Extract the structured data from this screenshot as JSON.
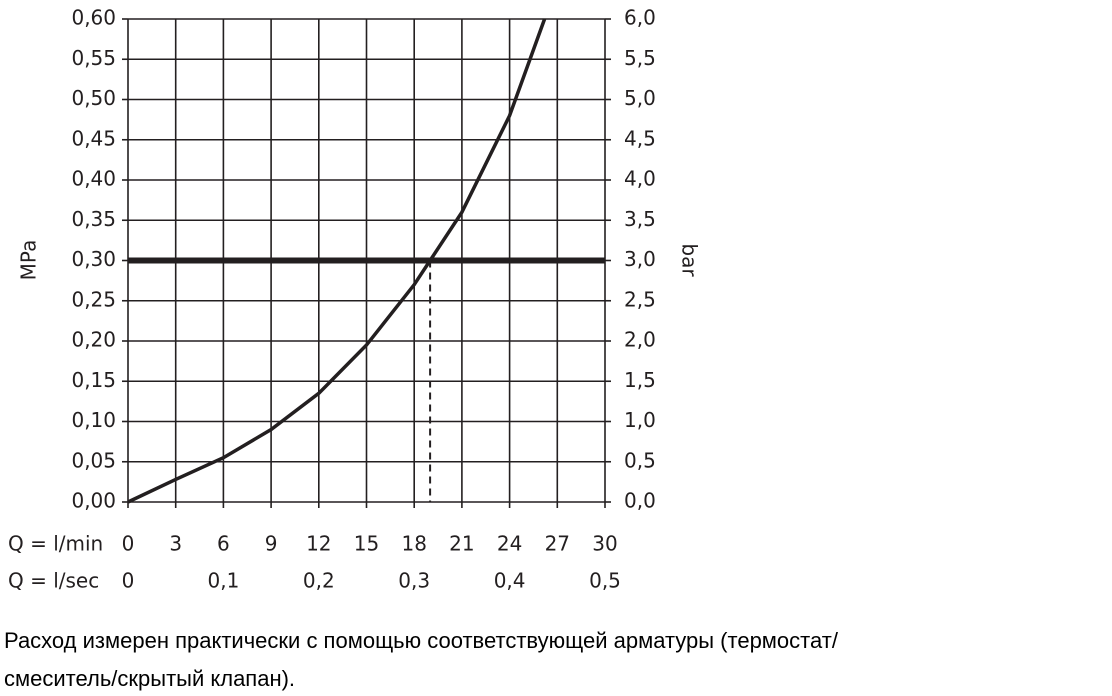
{
  "chart_data": {
    "type": "line",
    "y_label": "MPa",
    "y2_label": "bar",
    "x_label": "Q = l/min",
    "x2_label": "Q = l/sec",
    "xlim": [
      0,
      30
    ],
    "xticks": [
      0,
      3,
      6,
      9,
      12,
      15,
      18,
      21,
      24,
      27,
      30
    ],
    "x2lim": [
      0,
      0.5
    ],
    "x2ticks": [
      0,
      {
        "value": 0.1,
        "label": "0,1"
      },
      {
        "value": 0.2,
        "label": "0,2"
      },
      {
        "value": 0.3,
        "label": "0,3"
      },
      {
        "value": 0.4,
        "label": "0,4"
      },
      {
        "value": 0.5,
        "label": "0,5"
      }
    ],
    "ylim": [
      0,
      0.6
    ],
    "yticks": [
      {
        "value": 0,
        "label": "0,00"
      },
      {
        "value": 0.05,
        "label": "0,05"
      },
      {
        "value": 0.1,
        "label": "0,10"
      },
      {
        "value": 0.15,
        "label": "0,15"
      },
      {
        "value": 0.2,
        "label": "0,20"
      },
      {
        "value": 0.25,
        "label": "0,25"
      },
      {
        "value": 0.3,
        "label": "0,30"
      },
      {
        "value": 0.35,
        "label": "0,35"
      },
      {
        "value": 0.4,
        "label": "0,40"
      },
      {
        "value": 0.45,
        "label": "0,45"
      },
      {
        "value": 0.5,
        "label": "0,50"
      },
      {
        "value": 0.55,
        "label": "0,55"
      },
      {
        "value": 0.6,
        "label": "0,60"
      }
    ],
    "y2lim": [
      0,
      6
    ],
    "y2ticks": [
      {
        "value": 0,
        "label": "0,0"
      },
      {
        "value": 0.5,
        "label": "0,5"
      },
      {
        "value": 1,
        "label": "1,0"
      },
      {
        "value": 1.5,
        "label": "1,5"
      },
      {
        "value": 2,
        "label": "2,0"
      },
      {
        "value": 2.5,
        "label": "2,5"
      },
      {
        "value": 3,
        "label": "3,0"
      },
      {
        "value": 3.5,
        "label": "3,5"
      },
      {
        "value": 4,
        "label": "4,0"
      },
      {
        "value": 4.5,
        "label": "4,5"
      },
      {
        "value": 5,
        "label": "5,0"
      },
      {
        "value": 5.5,
        "label": "5,5"
      },
      {
        "value": 6,
        "label": "6,0"
      }
    ],
    "grid": true,
    "series": [
      {
        "color": "#231f20",
        "x": [
          0,
          3,
          6,
          9,
          12,
          15,
          18,
          19,
          21,
          24,
          26.2
        ],
        "values": [
          0,
          0.028,
          0.055,
          0.09,
          0.135,
          0.195,
          0.27,
          0.3,
          0.36,
          0.48,
          0.6
        ]
      }
    ],
    "reference_y": 0.3,
    "reference_x": 19,
    "caption": [
      "Расход измерен практически с помощью соответствующей арматуры (термостат/",
      "смеситель/скрытый клапан)."
    ]
  }
}
